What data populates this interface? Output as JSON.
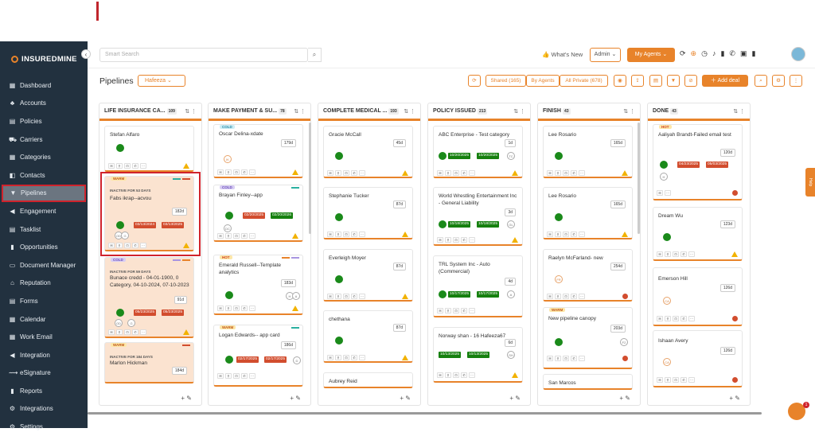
{
  "brand": "INSUREDMINE",
  "sidebar": [
    "Dashboard",
    "Accounts",
    "Policies",
    "Carriers",
    "Categories",
    "Contacts",
    "Pipelines",
    "Engagement",
    "Tasklist",
    "Opportunities",
    "Document Manager",
    "Reputation",
    "Forms",
    "Calendar",
    "Work Email",
    "Integration",
    "eSignature",
    "Reports",
    "Integrations",
    "Settings"
  ],
  "sidebar_icons": [
    "▦",
    "♣",
    "▤",
    "⛟",
    "▦",
    "◧",
    "▼",
    "◀",
    "▤",
    "▮",
    "▭",
    "⌂",
    "▤",
    "▦",
    "▦",
    "◀",
    "⟿",
    "▮",
    "⚙",
    "⚙"
  ],
  "search": {
    "placeholder": "Smart Search"
  },
  "header": {
    "whats_new": "What's New",
    "admin": "Admin",
    "my_agents": "My Agents"
  },
  "page": {
    "title": "Pipelines",
    "owner": "Hafeeza",
    "shared": "Shared (165)",
    "by_agents": "By Agents",
    "all_private": "All Private (678)",
    "add_deal": "Add deal"
  },
  "columns": [
    {
      "title": "LIFE INSURANCE CA...",
      "count": "109"
    },
    {
      "title": "MAKE PAYMENT & SU...",
      "count": "78"
    },
    {
      "title": "COMPLETE MEDICAL ...",
      "count": "193"
    },
    {
      "title": "POLICY ISSUED",
      "count": "213"
    },
    {
      "title": "FINISH",
      "count": "43"
    },
    {
      "title": "DONE",
      "count": "43"
    }
  ],
  "cards": {
    "c1a": {
      "name": "Stefan Alfaro"
    },
    "c1b": {
      "tag": "WARM",
      "inactive": "INACTIVE FOR 53 DAYS",
      "name": "Fabs ikrap--acvou",
      "age": "182d",
      "d1": "03/13/2024",
      "d2": "03/13/2025",
      "i1": "OD",
      "i2": "G"
    },
    "c1c": {
      "tag": "COLD",
      "inactive": "INACTIVE FOR 59 DAYS",
      "name": "Bunace credd - 04-01-1900, 0 Category, 04-10-2024, 07-10-2023",
      "age": "91d",
      "d1": "05/23/2025",
      "d2": "05/23/2025",
      "i1": "OD",
      "i2": "G"
    },
    "c1d": {
      "tag": "WARM",
      "inactive": "INACTIVE FOR 184 DAYS",
      "name": "Marlon Hickman",
      "age": "184d"
    },
    "c2a": {
      "tag": "COLD",
      "name": "Oscar Delina-xdate",
      "age": "179d",
      "i1": "IK"
    },
    "c2b": {
      "tag": "COLD",
      "name": "Brayan Finley--app",
      "d1": "02/20/2025",
      "d2": "02/20/2026",
      "i1": "DC"
    },
    "c2c": {
      "tag": "HOT",
      "name": "Emerald Russell--Template analytics",
      "age": "183d",
      "i1": "H",
      "i2": "A"
    },
    "c2d": {
      "tag": "WARM",
      "name": "Logan Edwards-- app card",
      "age": "186d",
      "d1": "02/17/2025",
      "d2": "02/17/2025",
      "i1": "D"
    },
    "c3a": {
      "name": "Gracie McCall",
      "age": "45d"
    },
    "c3b": {
      "name": "Stephanie Tucker",
      "age": "87d"
    },
    "c3c": {
      "name": "Everleigh Moyer",
      "age": "87d"
    },
    "c3d": {
      "name": "chethana",
      "age": "87d"
    },
    "c3e": {
      "name": "Aubrey Reid"
    },
    "c4a": {
      "name": "ABC Enterprise - Test category",
      "age": "1d",
      "d1": "10/20/2025",
      "d2": "10/20/2025",
      "i1": "TC"
    },
    "c4b": {
      "name": "World Wrestling Entertainment Inc - General Liability",
      "age": "3d",
      "d1": "10/18/2025",
      "d2": "10/18/2025",
      "i1": "GL"
    },
    "c4c": {
      "name": "TRL System Inc - Auto (Commercial)",
      "age": "4d",
      "d1": "10/17/2025",
      "d2": "10/17/2025",
      "i1": "A"
    },
    "c4d": {
      "name": "Norway shan - 16 Hafeeza67",
      "age": "6d",
      "d1": "10/13/2025",
      "d2": "10/13/2025",
      "i1": "SH"
    },
    "c5a": {
      "name": "Lee Rosario",
      "age": "165d"
    },
    "c5b": {
      "name": "Lee Rosario",
      "age": "165d"
    },
    "c5c": {
      "name": "Raelyn McFarland- new",
      "age": "254d",
      "i1": "FR"
    },
    "c5d": {
      "tag": "WARM",
      "name": "New pipeline canopy",
      "age": "203d",
      "i1": "F2"
    },
    "c5e": {
      "name": "San Marcos"
    },
    "c6a": {
      "tag": "HOT",
      "name": "Aaliyah Brandt-Failed email test",
      "age": "120d",
      "d1": "04/23/2025",
      "d2": "05/03/2025",
      "i1": "H"
    },
    "c6b": {
      "name": "Dream Wu",
      "age": "123d"
    },
    "c6c": {
      "name": "Emerson Hill",
      "age": "126d",
      "i1": "CA"
    },
    "c6d": {
      "name": "Ishaan Avery",
      "age": "126d",
      "i1": "CA"
    }
  },
  "help": "Help",
  "chat_badge": "1",
  "colors": {
    "accent": "#e8832a",
    "sidebar": "#22313f",
    "highlight": "#d0232c"
  }
}
